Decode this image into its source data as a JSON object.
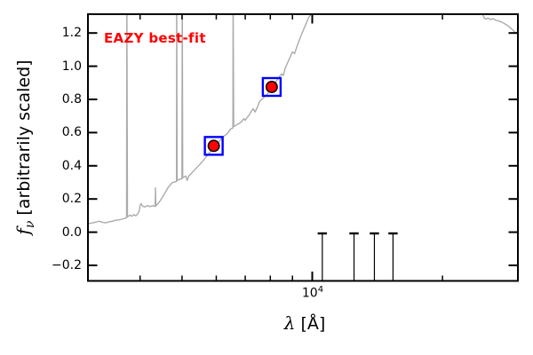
{
  "chart_data": {
    "type": "line",
    "title": "",
    "annotation": "EAZY best-fit",
    "annotation_color": "#ff0000",
    "xlabel": "λ [Å]",
    "ylabel": "f_ν [arbitrarily scaled]",
    "xlabel_parts": {
      "sym": "λ",
      "rest": " [Å]"
    },
    "ylabel_parts": {
      "sym": "f",
      "sub": "ν",
      "rest": " [arbitrarily scaled]"
    },
    "x_scale": "log",
    "xlim": [
      3030,
      29900
    ],
    "ylim": [
      -0.29,
      1.31
    ],
    "grid": false,
    "legend": "none",
    "x_major_ticks": [
      {
        "value": 10000,
        "label_base": "10",
        "label_exp": "4"
      }
    ],
    "x_minor_ticks": [
      4000,
      5000,
      6000,
      7000,
      8000,
      9000,
      20000
    ],
    "y_ticks": [
      {
        "value": 1.2,
        "label": "1.2"
      },
      {
        "value": 1.0,
        "label": "1.0"
      },
      {
        "value": 0.8,
        "label": "0.8"
      },
      {
        "value": 0.6,
        "label": "0.6"
      },
      {
        "value": 0.4,
        "label": "0.4"
      },
      {
        "value": 0.2,
        "label": "0.2"
      },
      {
        "value": 0.0,
        "label": "0.0"
      },
      {
        "value": -0.2,
        "label": "−0.2"
      }
    ],
    "series": [
      {
        "name": "eazy-best-fit-template-spectrum",
        "color": "#ababab",
        "linewidth": 1.4,
        "note": "values above 1.31 are clipped at the axes top (emission-line spikes at 3727, 4861, 5007, 6563 A; spectrum off-scale between ~10000 and ~24700 A)",
        "points": [
          [
            3030,
            0.052
          ],
          [
            3090,
            0.055
          ],
          [
            3150,
            0.06
          ],
          [
            3220,
            0.066
          ],
          [
            3270,
            0.06
          ],
          [
            3330,
            0.056
          ],
          [
            3390,
            0.062
          ],
          [
            3450,
            0.066
          ],
          [
            3510,
            0.072
          ],
          [
            3570,
            0.074
          ],
          [
            3630,
            0.078
          ],
          [
            3690,
            0.083
          ],
          [
            3722,
            0.088
          ],
          [
            3727,
            1.45
          ],
          [
            3740,
            0.092
          ],
          [
            3790,
            0.103
          ],
          [
            3830,
            0.096
          ],
          [
            3870,
            0.106
          ],
          [
            3910,
            0.099
          ],
          [
            3950,
            0.11
          ],
          [
            3980,
            0.125
          ],
          [
            4000,
            0.162
          ],
          [
            4020,
            0.172
          ],
          [
            4050,
            0.158
          ],
          [
            4100,
            0.152
          ],
          [
            4160,
            0.16
          ],
          [
            4220,
            0.154
          ],
          [
            4280,
            0.16
          ],
          [
            4335,
            0.155
          ],
          [
            4340,
            0.267
          ],
          [
            4350,
            0.158
          ],
          [
            4440,
            0.185
          ],
          [
            4540,
            0.225
          ],
          [
            4640,
            0.268
          ],
          [
            4740,
            0.298
          ],
          [
            4800,
            0.302
          ],
          [
            4855,
            0.306
          ],
          [
            4861,
            1.45
          ],
          [
            4872,
            0.312
          ],
          [
            4930,
            0.318
          ],
          [
            4998,
            0.322
          ],
          [
            5007,
            1.45
          ],
          [
            5020,
            0.328
          ],
          [
            5060,
            0.333
          ],
          [
            5100,
            0.338
          ],
          [
            5140,
            0.312
          ],
          [
            5180,
            0.338
          ],
          [
            5260,
            0.355
          ],
          [
            5340,
            0.374
          ],
          [
            5460,
            0.4
          ],
          [
            5590,
            0.43
          ],
          [
            5720,
            0.462
          ],
          [
            5850,
            0.496
          ],
          [
            5970,
            0.52
          ],
          [
            6100,
            0.548
          ],
          [
            6230,
            0.576
          ],
          [
            6350,
            0.592
          ],
          [
            6480,
            0.622
          ],
          [
            6555,
            0.628
          ],
          [
            6563,
            1.45
          ],
          [
            6585,
            0.636
          ],
          [
            6680,
            0.646
          ],
          [
            6790,
            0.656
          ],
          [
            6880,
            0.668
          ],
          [
            6950,
            0.684
          ],
          [
            7000,
            0.674
          ],
          [
            7060,
            0.69
          ],
          [
            7120,
            0.7
          ],
          [
            7200,
            0.72
          ],
          [
            7300,
            0.744
          ],
          [
            7380,
            0.724
          ],
          [
            7470,
            0.754
          ],
          [
            7560,
            0.788
          ],
          [
            7650,
            0.8
          ],
          [
            7760,
            0.816
          ],
          [
            7860,
            0.83
          ],
          [
            7960,
            0.85
          ],
          [
            8110,
            0.875
          ],
          [
            8260,
            0.91
          ],
          [
            8400,
            0.938
          ],
          [
            8500,
            0.954
          ],
          [
            8570,
            0.944
          ],
          [
            8660,
            0.988
          ],
          [
            8800,
            1.03
          ],
          [
            8900,
            1.058
          ],
          [
            9000,
            1.086
          ],
          [
            9100,
            1.076
          ],
          [
            9250,
            1.13
          ],
          [
            9440,
            1.19
          ],
          [
            9620,
            1.24
          ],
          [
            9800,
            1.29
          ],
          [
            9950,
            1.316
          ],
          [
            9990,
            1.45
          ],
          [
            24600,
            1.45
          ],
          [
            24800,
            1.31
          ],
          [
            24950,
            1.292
          ],
          [
            25200,
            1.284
          ],
          [
            25500,
            1.29
          ],
          [
            25800,
            1.282
          ],
          [
            26200,
            1.286
          ],
          [
            26600,
            1.276
          ],
          [
            27000,
            1.272
          ],
          [
            27500,
            1.264
          ],
          [
            28000,
            1.252
          ],
          [
            28400,
            1.242
          ],
          [
            28800,
            1.228
          ],
          [
            29200,
            1.214
          ],
          [
            29500,
            1.2
          ],
          [
            29900,
            1.208
          ]
        ]
      }
    ],
    "markers": {
      "name": "observed-photometry-points",
      "fill": "#ff0000",
      "edge": "#000000",
      "box_color": "#0000ff",
      "points": [
        [
          5920,
          0.52
        ],
        [
          8060,
          0.875
        ]
      ]
    },
    "errorbars": {
      "name": "low-flux-photometry-errorbars",
      "color": "#000000",
      "top_value": 0.0,
      "x": [
        10550,
        12490,
        13920,
        15370
      ]
    }
  }
}
